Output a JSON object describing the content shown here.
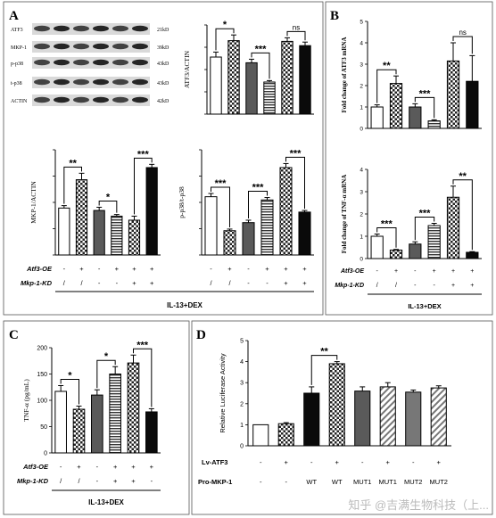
{
  "panels": {
    "A": "A",
    "B": "B",
    "C": "C",
    "D": "D"
  },
  "blot": {
    "rows": [
      {
        "label": "ATF3",
        "size": "21kD"
      },
      {
        "label": "MKP-1",
        "size": "39kD"
      },
      {
        "label": "p-p38",
        "size": "43kD"
      },
      {
        "label": "t-p38",
        "size": "43kD"
      },
      {
        "label": "ACTIN",
        "size": "42kD"
      }
    ]
  },
  "conditions": {
    "atf3_label": "Atf3-OE",
    "mkp1_label": "Mkp-1-KD",
    "atf3_marks": [
      "-",
      "+",
      "-",
      "+",
      "+",
      "+"
    ],
    "mkp1_marks": [
      "/",
      "/",
      "-",
      "-",
      "+",
      "+"
    ],
    "mkp1_marks_C": [
      "/",
      "/",
      "-",
      "+",
      "+",
      "-"
    ],
    "treatment": "IL-13+DEX"
  },
  "chart_data": [
    {
      "id": "A-atf3",
      "type": "bar",
      "ylabel": "ATF3/ACTIN",
      "ylim": [
        0,
        1.25
      ],
      "values": [
        0.8,
        1.03,
        0.72,
        0.45,
        1.02,
        0.96
      ],
      "errors": [
        0.07,
        0.08,
        0.05,
        0.02,
        0.05,
        0.05
      ],
      "significance": [
        {
          "from": 0,
          "to": 1,
          "label": "*"
        },
        {
          "from": 2,
          "to": 3,
          "label": "***"
        },
        {
          "from": 4,
          "to": 5,
          "label": "ns"
        }
      ]
    },
    {
      "id": "A-mkp1",
      "type": "bar",
      "ylabel": "MKP-1/ACTIN",
      "ylim": [
        0,
        1.3
      ],
      "values": [
        0.58,
        0.93,
        0.55,
        0.48,
        0.43,
        1.08
      ],
      "errors": [
        0.03,
        0.08,
        0.04,
        0.02,
        0.05,
        0.04
      ],
      "significance": [
        {
          "from": 0,
          "to": 1,
          "label": "**"
        },
        {
          "from": 2,
          "to": 3,
          "label": "*"
        },
        {
          "from": 4,
          "to": 5,
          "label": "***"
        }
      ]
    },
    {
      "id": "A-pp38",
      "type": "bar",
      "ylabel": "p-p38/t-p38",
      "ylim": [
        0,
        1.3
      ],
      "values": [
        0.72,
        0.3,
        0.4,
        0.68,
        1.08,
        0.53
      ],
      "errors": [
        0.04,
        0.02,
        0.03,
        0.03,
        0.05,
        0.02
      ],
      "significance": [
        {
          "from": 0,
          "to": 1,
          "label": "***"
        },
        {
          "from": 2,
          "to": 3,
          "label": "***"
        },
        {
          "from": 4,
          "to": 5,
          "label": "***"
        }
      ]
    },
    {
      "id": "B-atf3",
      "type": "bar",
      "ylabel": "Fold change of ATF3 mRNA",
      "ylim": [
        0,
        5
      ],
      "yticks": [
        0,
        1,
        2,
        3,
        4,
        5
      ],
      "values": [
        1.0,
        2.1,
        1.0,
        0.35,
        3.15,
        2.2
      ],
      "errors": [
        0.1,
        0.35,
        0.15,
        0.05,
        0.85,
        1.2
      ],
      "significance": [
        {
          "from": 0,
          "to": 1,
          "label": "**"
        },
        {
          "from": 2,
          "to": 3,
          "label": "***"
        },
        {
          "from": 4,
          "to": 5,
          "label": "ns"
        }
      ]
    },
    {
      "id": "B-tnf",
      "type": "bar",
      "ylabel": "Fold change of TNF-α mRNA",
      "ylim": [
        0,
        4
      ],
      "yticks": [
        0,
        1,
        2,
        3,
        4
      ],
      "values": [
        1.0,
        0.38,
        0.65,
        1.48,
        2.75,
        0.28
      ],
      "errors": [
        0.1,
        0.03,
        0.1,
        0.1,
        0.5,
        0.03
      ],
      "significance": [
        {
          "from": 0,
          "to": 1,
          "label": "***"
        },
        {
          "from": 2,
          "to": 3,
          "label": "***"
        },
        {
          "from": 4,
          "to": 5,
          "label": "**"
        }
      ]
    },
    {
      "id": "C-tnf",
      "type": "bar",
      "ylabel": "TNF-α (pg/mL)",
      "ylim": [
        0,
        200
      ],
      "yticks": [
        0,
        50,
        100,
        150,
        200
      ],
      "values": [
        117,
        83,
        110,
        150,
        171,
        78
      ],
      "errors": [
        11,
        6,
        10,
        14,
        15,
        6
      ],
      "significance": [
        {
          "from": 0,
          "to": 1,
          "label": "*"
        },
        {
          "from": 2,
          "to": 3,
          "label": "*"
        },
        {
          "from": 4,
          "to": 5,
          "label": "***"
        }
      ]
    },
    {
      "id": "D-luc",
      "type": "bar",
      "ylabel": "Relative Luciferase Activity",
      "ylim": [
        0,
        5
      ],
      "yticks": [
        0,
        1,
        2,
        3,
        4,
        5
      ],
      "values": [
        1.0,
        1.05,
        2.5,
        3.9,
        2.6,
        2.8,
        2.55,
        2.75
      ],
      "errors": [
        0.0,
        0.05,
        0.3,
        0.1,
        0.2,
        0.2,
        0.1,
        0.1
      ],
      "significance": [
        {
          "from": 2,
          "to": 3,
          "label": "**"
        }
      ],
      "lv_atf3_label": "Lv-ATF3",
      "lv_atf3_marks": [
        "-",
        "+",
        "-",
        "+",
        "-",
        "+",
        "-",
        "+"
      ],
      "pro_label": "Pro-MKP-1",
      "pro_marks": [
        "-",
        "-",
        "WT",
        "WT",
        "MUT1",
        "MUT1",
        "MUT2",
        "MUT2"
      ]
    }
  ],
  "watermark": "知乎 @吉满生物科技（上..."
}
